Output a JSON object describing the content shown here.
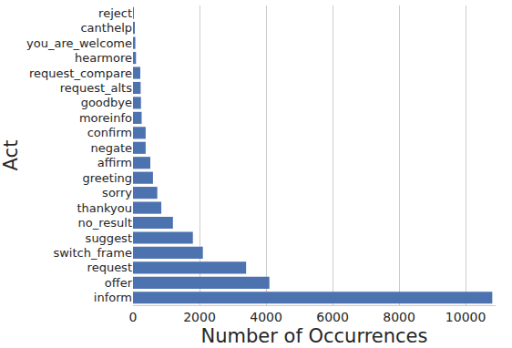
{
  "chart_data": {
    "type": "bar",
    "orientation": "horizontal",
    "x_label": "Number of Occurrences",
    "y_label": "Act",
    "categories": [
      "reject",
      "canthelp",
      "you_are_welcome",
      "hearmore",
      "request_compare",
      "request_alts",
      "goodbye",
      "moreinfo",
      "confirm",
      "negate",
      "affirm",
      "greeting",
      "sorry",
      "thankyou",
      "no_result",
      "suggest",
      "switch_frame",
      "request",
      "offer",
      "inform"
    ],
    "values": [
      10,
      40,
      70,
      90,
      220,
      230,
      240,
      260,
      380,
      380,
      520,
      600,
      730,
      850,
      1200,
      1800,
      2100,
      3400,
      4100,
      10800
    ],
    "color": "#4c72b0",
    "xlim": [
      0,
      10900
    ],
    "xticks": [
      0,
      2000,
      4000,
      6000,
      8000,
      10000
    ],
    "grid": true
  }
}
